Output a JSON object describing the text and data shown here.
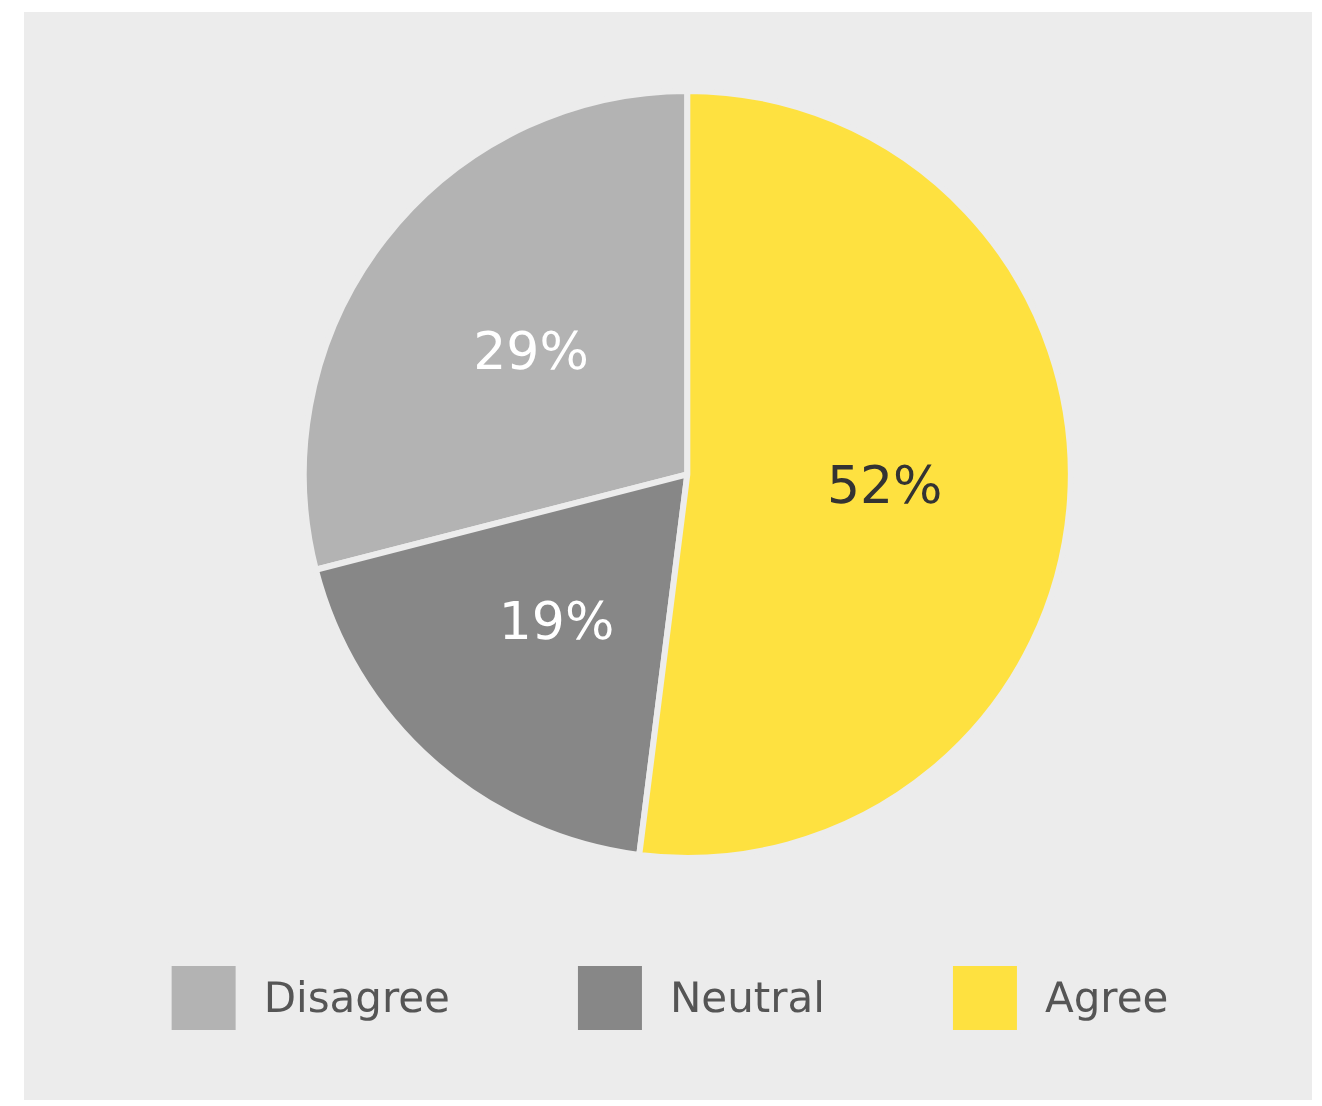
{
  "chart_data": {
    "type": "pie",
    "categories": [
      "Disagree",
      "Neutral",
      "Agree"
    ],
    "values": [
      29,
      19,
      52
    ],
    "colors": [
      "#b3b3b3",
      "#878787",
      "#fee140"
    ],
    "value_labels": [
      "29%",
      "19%",
      "52%"
    ],
    "legend": "bottom"
  }
}
